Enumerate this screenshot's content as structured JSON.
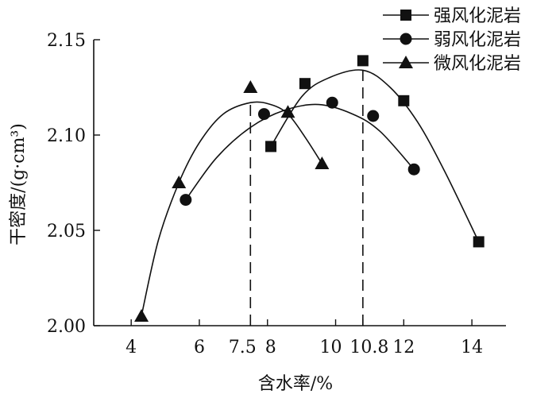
{
  "chart_data": {
    "type": "scatter",
    "xlabel": "含水率/%",
    "ylabel": "干密度/(g·cm³)",
    "xlim": [
      2.9,
      15.0
    ],
    "ylim": [
      2.0,
      2.15
    ],
    "x_ticks": [
      4,
      6,
      7.5,
      8,
      10,
      10.8,
      12,
      14
    ],
    "x_tick_labels": [
      "4",
      "6",
      "7.5",
      "8",
      "10",
      "10.8",
      "12",
      "14"
    ],
    "y_ticks": [
      2.0,
      2.05,
      2.1,
      2.15
    ],
    "y_tick_labels": [
      "2.00",
      "2.05",
      "2.10",
      "2.15"
    ],
    "grid": false,
    "legend_position": "top-right",
    "reference_lines": [
      {
        "x": 7.5,
        "y": 2.117,
        "style": "dashed"
      },
      {
        "x": 10.8,
        "y": 2.134,
        "style": "dashed"
      }
    ],
    "series": [
      {
        "name": "强风化泥岩",
        "marker": "square",
        "x": [
          8.1,
          9.1,
          10.8,
          12.0,
          14.2
        ],
        "y": [
          2.094,
          2.127,
          2.139,
          2.118,
          2.044
        ],
        "fit_x": [
          8.1,
          9.0,
          9.8,
          10.8,
          11.6,
          12.4,
          13.2,
          14.2
        ],
        "fit_y": [
          2.094,
          2.12,
          2.13,
          2.134,
          2.125,
          2.107,
          2.081,
          2.044
        ]
      },
      {
        "name": "弱风化泥岩",
        "marker": "circle",
        "x": [
          5.6,
          7.9,
          9.9,
          11.1,
          12.3
        ],
        "y": [
          2.066,
          2.111,
          2.117,
          2.11,
          2.082
        ],
        "fit_x": [
          5.6,
          6.5,
          7.5,
          8.5,
          9.5,
          10.5,
          11.3,
          12.3
        ],
        "fit_y": [
          2.066,
          2.088,
          2.104,
          2.113,
          2.116,
          2.111,
          2.102,
          2.082
        ]
      },
      {
        "name": "微风化泥岩",
        "marker": "triangle",
        "x": [
          4.3,
          5.4,
          7.5,
          8.6,
          9.6
        ],
        "y": [
          2.005,
          2.075,
          2.125,
          2.112,
          2.085
        ],
        "fit_x": [
          4.3,
          4.8,
          5.4,
          6.0,
          6.7,
          7.5,
          8.1,
          8.6,
          9.1,
          9.6
        ],
        "fit_y": [
          2.005,
          2.045,
          2.075,
          2.096,
          2.111,
          2.117,
          2.116,
          2.111,
          2.099,
          2.085
        ]
      }
    ]
  }
}
